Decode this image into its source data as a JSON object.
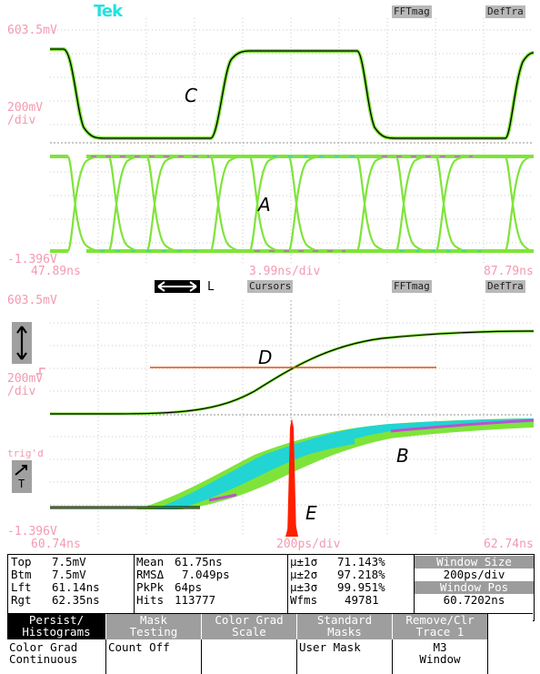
{
  "top_display": {
    "brand": "Tek",
    "buttons": [
      "FFTmag",
      "DefTra"
    ],
    "y_top": "603.5mV",
    "y_scale": "200mV\n/div",
    "y_bottom": "-1.396V",
    "x_left": "47.89ns",
    "x_scale": "3.99ns/div",
    "x_right": "87.79ns",
    "labels": [
      "C",
      "A"
    ]
  },
  "middle_bar": {
    "horiz_icon": "horizontal-arrows-icon",
    "horiz_label": "L",
    "buttons": [
      "Cursors",
      "FFTmag",
      "DefTra"
    ]
  },
  "bottom_display": {
    "y_top": "603.5mV",
    "y_scale": "200mV\n/div",
    "y_bottom": "-1.396V",
    "trig_label": "trig'd",
    "trig_icon": "trigger-slope-icon",
    "trig_t": "T",
    "x_left": "60.74ns",
    "x_scale": "200ps/div",
    "x_right": "62.74ns",
    "labels": [
      "D",
      "B",
      "E"
    ]
  },
  "measurements": {
    "col1": [
      [
        "Top",
        "7.5mV"
      ],
      [
        "Btm",
        "7.5mV"
      ],
      [
        "Lft",
        "61.14ns"
      ],
      [
        "Rgt",
        "62.35ns"
      ]
    ],
    "col2": [
      [
        "Mean",
        "61.75ns"
      ],
      [
        "RMSΔ",
        "7.049ps"
      ],
      [
        "PkPk",
        "64ps"
      ],
      [
        "Hits",
        "113777"
      ]
    ],
    "col3": [
      [
        "μ±1σ",
        "71.143%"
      ],
      [
        "μ±2σ",
        "97.218%"
      ],
      [
        "μ±3σ",
        "99.951%"
      ],
      [
        "Wfms",
        "49781"
      ]
    ],
    "window_size_label": "Window Size",
    "window_size_value": "200ps/div",
    "window_pos_label": "Window Pos",
    "window_pos_value": "60.7202ns"
  },
  "menu": {
    "buttons": [
      {
        "label": "Persist/\nHistograms",
        "sub": "Color Grad\nContinuous"
      },
      {
        "label": "Mask\nTesting",
        "sub": "Count Off"
      },
      {
        "label": "Color Grad\nScale",
        "sub": ""
      },
      {
        "label": "Standard\nMasks",
        "sub": "User Mask"
      },
      {
        "label": "Remove/Clr\nTrace 1",
        "sub": "M3\nWindow"
      }
    ]
  },
  "colors": {
    "trace_green": "#7fe43a",
    "trace_cyan": "#22d4d4",
    "trace_magenta": "#c050d0",
    "cursor_orange": "#e05010",
    "histogram_red": "#ff2000",
    "scale_text": "#f29ab0"
  }
}
